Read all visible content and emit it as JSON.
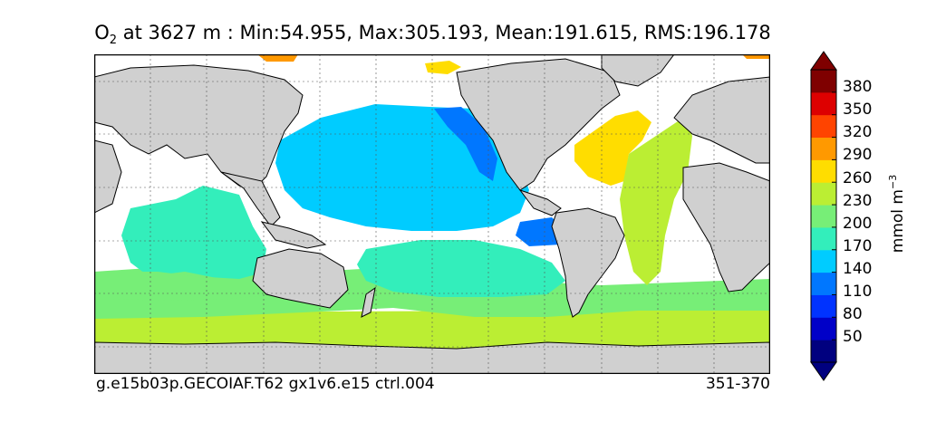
{
  "title": {
    "variable": "O",
    "subscript": "2",
    "text": " at 3627 m : Min:54.955, Max:305.193, Mean:191.615, RMS:196.178"
  },
  "footer": {
    "left": "g.e15b03p.GECOIAF.T62 gx1v6.e15 ctrl.004",
    "right": "351-370"
  },
  "colorbar": {
    "units_label": "mmol m",
    "units_exponent": "−3",
    "tick_labels": [
      "380",
      "350",
      "320",
      "290",
      "260",
      "230",
      "200",
      "170",
      "140",
      "110",
      "80",
      "50"
    ],
    "colors": [
      "#00007f",
      "#0000c8",
      "#0033ff",
      "#0077ff",
      "#00ccff",
      "#33eebb",
      "#77ee77",
      "#bbee33",
      "#ffdd00",
      "#ff9900",
      "#ff4400",
      "#dd0000",
      "#7f0000"
    ],
    "extend": "both"
  },
  "map": {
    "land_color": "#d0d0d0",
    "gridlines": "dashed"
  },
  "chart_data": {
    "type": "heatmap",
    "title": "O2 at 3627 m : Min:54.955, Max:305.193, Mean:191.615, RMS:196.178",
    "variable": "O2",
    "depth_m": 3627,
    "stats": {
      "min": 54.955,
      "max": 305.193,
      "mean": 191.615,
      "rms": 196.178
    },
    "units": "mmol m^-3",
    "contour_levels": [
      50,
      80,
      110,
      140,
      170,
      200,
      230,
      260,
      290,
      320,
      350,
      380
    ]
  }
}
